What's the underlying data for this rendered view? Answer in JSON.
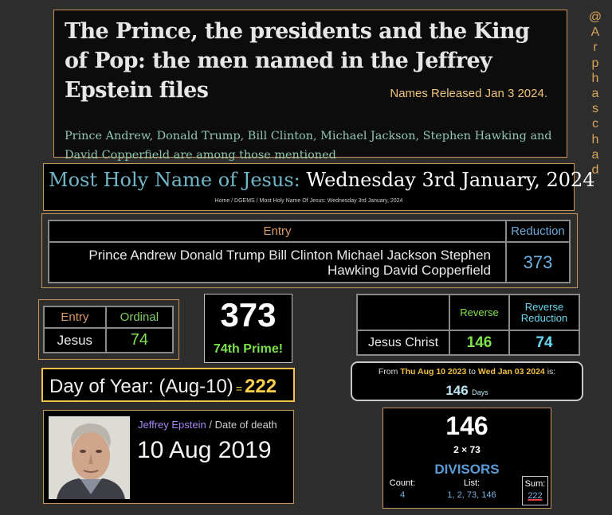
{
  "headline": {
    "title": "The Prince, the presidents and the King of Pop: the men named in the Jeffrey Epstein files",
    "released": "Names Released Jan 3 2024.",
    "subtitle": "Prince Andrew, Donald Trump, Bill Clinton, Michael Jackson, Stephen Hawking and David Copperfield are among those mentioned"
  },
  "credit": [
    "@",
    "A",
    "r",
    "p",
    "h",
    "a",
    "s",
    "c",
    "h",
    "a",
    "d"
  ],
  "holy": {
    "prefix": "Most Holy Name of Jesus:",
    "date": "Wednesday 3rd January, 2024",
    "breadcrumb": "Home  /  DGEMS  /  Most Holy Name Of Jesus: Wednesday 3rd January, 2024"
  },
  "entry_table": {
    "col_entry": "Entry",
    "col_reduction": "Reduction",
    "entry_text": "Prince Andrew Donald Trump Bill Clinton Michael Jackson Stephen Hawking David Copperfield",
    "reduction_value": "373"
  },
  "jesus_table": {
    "col_entry": "Entry",
    "col_ordinal": "Ordinal",
    "entry": "Jesus",
    "ordinal": "74"
  },
  "prime": {
    "number": "373",
    "label": "74th Prime!"
  },
  "reverse_table": {
    "col_reverse": "Reverse",
    "col_reverse_reduction": "Reverse Reduction",
    "entry": "Jesus Christ",
    "reverse": "146",
    "reverse_reduction": "74"
  },
  "day_of_year": {
    "label": "Day of Year: (Aug-10)",
    "eq": "=",
    "value": "222"
  },
  "date_range": {
    "from_label": "From",
    "from_date": "Thu Aug 10 2023",
    "to_label": "to",
    "to_date": "Wed Jan 03 2024",
    "is_label": "is:",
    "days": "146",
    "unit": "Days"
  },
  "epstein": {
    "name": "Jeffrey Epstein",
    "sep_label": " / Date of death",
    "date": "10 Aug 2019"
  },
  "divisors": {
    "number": "146",
    "factorization": "2 × 73",
    "title": "DIVISORS",
    "count_label": "Count:",
    "count_value": "4",
    "list_label": "List:",
    "list_value": "1, 2, 73, 146",
    "sum_label": "Sum:",
    "sum_value": "222"
  }
}
